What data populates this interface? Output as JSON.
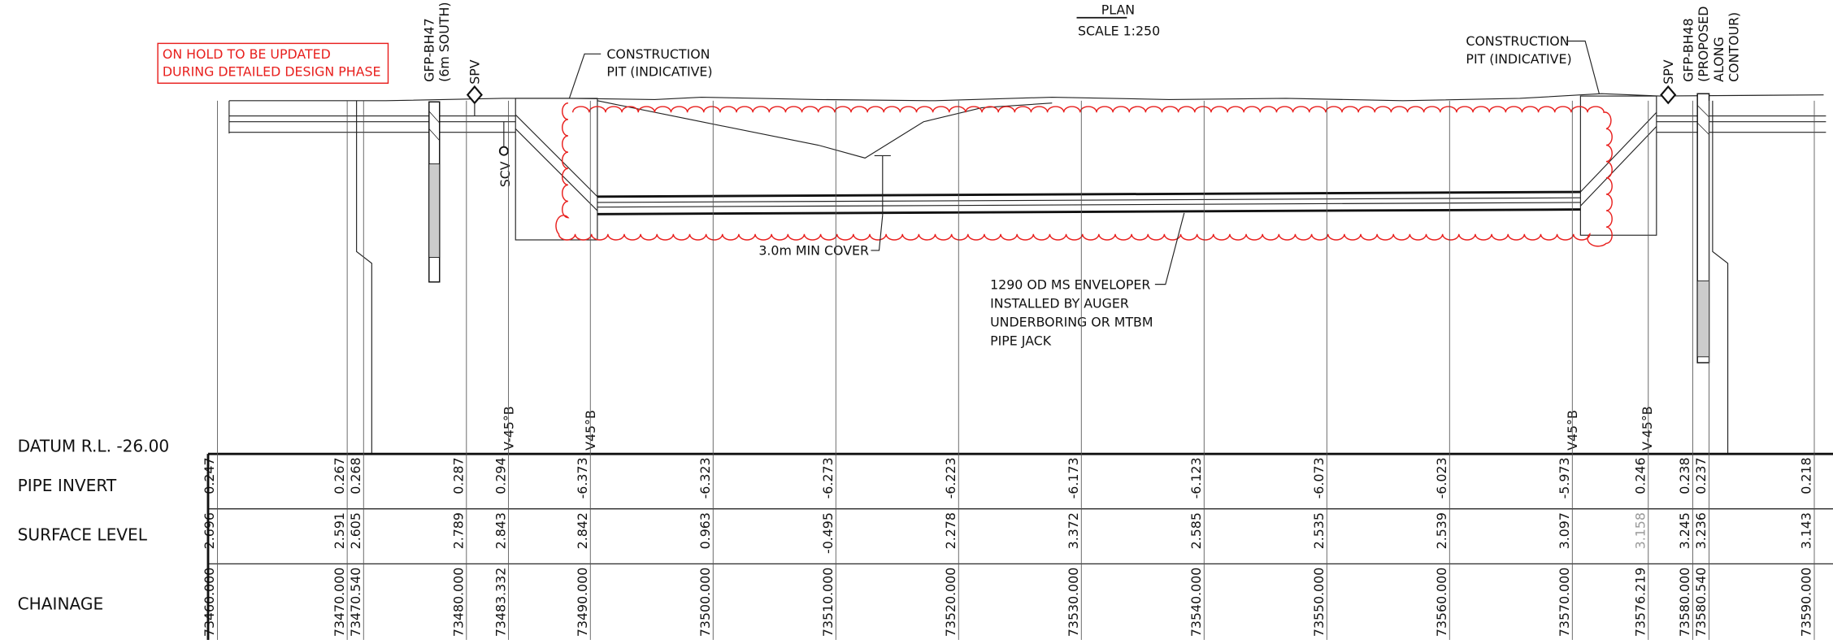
{
  "header": {
    "title": "PLAN",
    "scale": "SCALE 1:250"
  },
  "note": [
    "ON HOLD TO BE UPDATED",
    "DURING DETAILED DESIGN PHASE"
  ],
  "labels": {
    "bh47": [
      "GFP-BH47",
      "(6m SOUTH)"
    ],
    "spv_left": "SPV",
    "scv": "SCV",
    "pit_left": [
      "CONSTRUCTION",
      "PIT (INDICATIVE)"
    ],
    "pit_right": [
      "CONSTRUCTION",
      "PIT (INDICATIVE)"
    ],
    "spv_right": "SPV",
    "bh48": [
      "GFP-BH48",
      "(PROPOSED",
      "ALONG",
      "CONTOUR)"
    ],
    "min_cover": "3.0m MIN COVER",
    "enveloper": [
      "1290 OD MS ENVELOPER",
      "INSTALLED BY AUGER",
      "UNDERBORING OR MTBM",
      "PIPE JACK"
    ],
    "bends": [
      "V-45°B",
      "V45°B",
      "V45°B",
      "V-45°B"
    ]
  },
  "table": {
    "row_labels": [
      "DATUM R.L. -26.00",
      "PIPE INVERT",
      "SURFACE LEVEL",
      "CHAINAGE"
    ],
    "columns": [
      {
        "chainage": "73460.000",
        "pipe_invert": "0.247",
        "surface_level": "2.696"
      },
      {
        "chainage": "73470.000",
        "pipe_invert": "0.267",
        "surface_level": "2.591"
      },
      {
        "chainage": "73470.540",
        "pipe_invert": "0.268",
        "surface_level": "2.605"
      },
      {
        "chainage": "73480.000",
        "pipe_invert": "0.287",
        "surface_level": "2.789"
      },
      {
        "chainage": "73483.332",
        "pipe_invert": "0.294",
        "surface_level": "2.843"
      },
      {
        "chainage": "73490.000",
        "pipe_invert": "-6.373",
        "surface_level": "2.842"
      },
      {
        "chainage": "73500.000",
        "pipe_invert": "-6.323",
        "surface_level": "0.963"
      },
      {
        "chainage": "73510.000",
        "pipe_invert": "-6.273",
        "surface_level": "-0.495"
      },
      {
        "chainage": "73520.000",
        "pipe_invert": "-6.223",
        "surface_level": "2.278"
      },
      {
        "chainage": "73530.000",
        "pipe_invert": "-6.173",
        "surface_level": "3.372"
      },
      {
        "chainage": "73540.000",
        "pipe_invert": "-6.123",
        "surface_level": "2.585"
      },
      {
        "chainage": "73550.000",
        "pipe_invert": "-6.073",
        "surface_level": "2.535"
      },
      {
        "chainage": "73560.000",
        "pipe_invert": "-6.023",
        "surface_level": "2.539"
      },
      {
        "chainage": "73570.000",
        "pipe_invert": "-5.973",
        "surface_level": "3.097"
      },
      {
        "chainage": "73576.219",
        "pipe_invert": "0.246",
        "surface_level": "3.158"
      },
      {
        "chainage": "73580.000",
        "pipe_invert": "0.238",
        "surface_level": "3.245"
      },
      {
        "chainage": "73580.540",
        "pipe_invert": "0.237",
        "surface_level": "3.236"
      },
      {
        "chainage": "73590.000",
        "pipe_invert": "0.218",
        "surface_level": "3.143"
      }
    ]
  }
}
